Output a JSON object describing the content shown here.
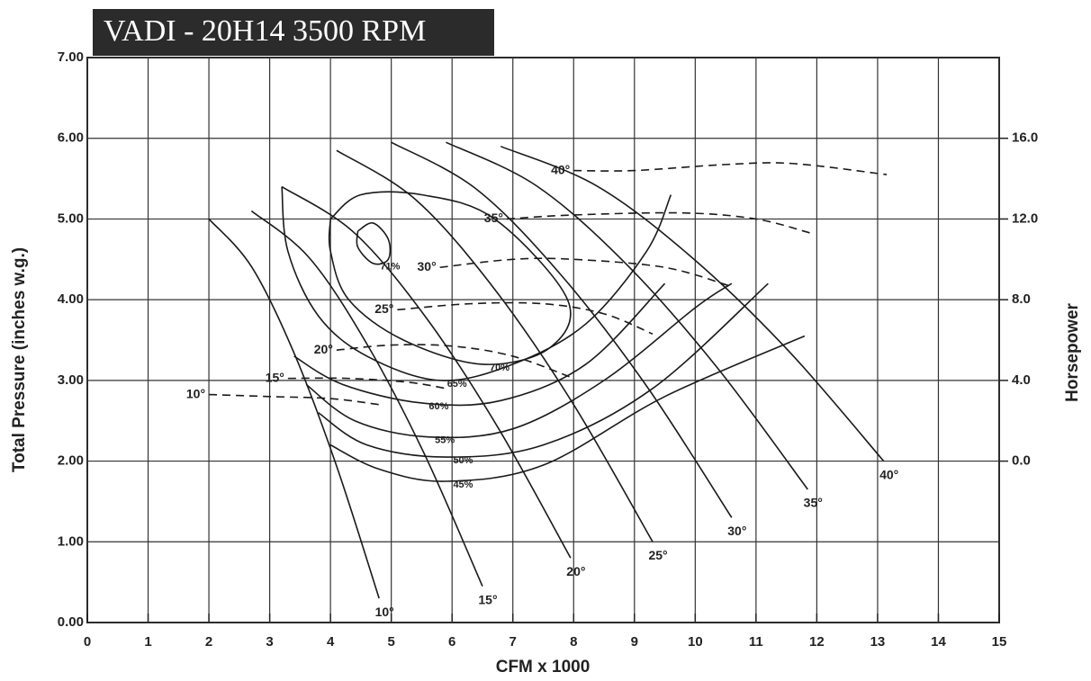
{
  "chart_data": {
    "type": "line",
    "title": "VADI - 20H14   3500 RPM",
    "xlabel": "CFM x 1000",
    "ylabel": "Total Pressure (inches w.g.)",
    "y2label": "Horsepower",
    "xlim": [
      0,
      15
    ],
    "xticks": [
      0,
      1,
      2,
      3,
      4,
      5,
      6,
      7,
      8,
      9,
      10,
      11,
      12,
      13,
      14,
      15
    ],
    "ylim": [
      0,
      7
    ],
    "yticks": [
      {
        "value": 0,
        "label": "0.00"
      },
      {
        "value": 1,
        "label": "1.00"
      },
      {
        "value": 2,
        "label": "2.00"
      },
      {
        "value": 3,
        "label": "3.00"
      },
      {
        "value": 4,
        "label": "4.00"
      },
      {
        "value": 5,
        "label": "5.00"
      },
      {
        "value": 6,
        "label": "6.00"
      },
      {
        "value": 7,
        "label": "7.00"
      }
    ],
    "y2lim": [
      -8,
      20
    ],
    "y2ticks": [
      {
        "value": 0,
        "label": "0.0"
      },
      {
        "value": 4,
        "label": "4.0"
      },
      {
        "value": 8,
        "label": "8.0"
      },
      {
        "value": 12,
        "label": "12.0"
      },
      {
        "value": 16,
        "label": "16.0"
      }
    ],
    "grid": true,
    "color": "#1a1a1a",
    "pressure_series": [
      {
        "name": "10°",
        "line_style": "solid",
        "x": [
          2.0,
          2.7,
          3.4,
          4.1,
          4.8
        ],
        "values": [
          5.0,
          4.41,
          3.34,
          1.94,
          0.3
        ]
      },
      {
        "name": "15°",
        "line_style": "solid",
        "x": [
          2.7,
          3.65,
          4.6,
          5.55,
          6.5
        ],
        "values": [
          5.1,
          4.52,
          3.45,
          2.08,
          0.45
        ]
      },
      {
        "name": "20°",
        "line_style": "solid",
        "x": [
          3.2,
          4.39,
          5.58,
          6.76,
          7.95
        ],
        "values": [
          5.4,
          4.83,
          3.77,
          2.41,
          0.8
        ]
      },
      {
        "name": "25°",
        "line_style": "solid",
        "x": [
          4.1,
          5.4,
          6.7,
          8.0,
          9.3
        ],
        "values": [
          5.85,
          5.24,
          4.13,
          2.7,
          1.0
        ]
      },
      {
        "name": "30°",
        "line_style": "solid",
        "x": [
          5.0,
          6.4,
          7.8,
          9.2,
          10.6
        ],
        "values": [
          5.95,
          5.37,
          4.3,
          2.93,
          1.3
        ]
      },
      {
        "name": "35°",
        "line_style": "solid",
        "x": [
          5.9,
          7.39,
          8.88,
          10.36,
          11.85
        ],
        "values": [
          5.95,
          5.41,
          4.43,
          3.16,
          1.65
        ]
      },
      {
        "name": "40°",
        "line_style": "solid",
        "x": [
          6.8,
          8.38,
          9.95,
          11.53,
          13.1
        ],
        "values": [
          5.9,
          5.41,
          4.52,
          3.37,
          2.0
        ]
      }
    ],
    "horsepower_series": [
      {
        "name": "10°",
        "line_style": "dashed",
        "axis": "y2",
        "x": [
          2.0,
          3.0,
          4.0,
          4.8
        ],
        "values": [
          3.3,
          3.2,
          3.1,
          2.8
        ]
      },
      {
        "name": "15°",
        "line_style": "dashed",
        "axis": "y2",
        "x": [
          3.3,
          4.3,
          5.3,
          5.9
        ],
        "values": [
          4.1,
          4.1,
          3.9,
          3.6
        ]
      },
      {
        "name": "20°",
        "line_style": "dashed",
        "axis": "y2",
        "x": [
          4.1,
          5.0,
          6.0,
          7.0,
          8.0
        ],
        "values": [
          5.5,
          5.75,
          5.7,
          5.2,
          4.1
        ]
      },
      {
        "name": "25°",
        "line_style": "dashed",
        "axis": "y2",
        "x": [
          5.1,
          6.3,
          7.5,
          8.5,
          9.3
        ],
        "values": [
          7.5,
          7.8,
          7.8,
          7.3,
          6.3
        ]
      },
      {
        "name": "30°",
        "line_style": "dashed",
        "axis": "y2",
        "x": [
          5.8,
          7.0,
          8.0,
          9.5,
          10.55
        ],
        "values": [
          9.6,
          10.0,
          10.0,
          9.6,
          8.7
        ]
      },
      {
        "name": "35°",
        "line_style": "dashed",
        "axis": "y2",
        "x": [
          6.9,
          8.0,
          9.8,
          11.0,
          11.9
        ],
        "values": [
          12.0,
          12.2,
          12.3,
          12.0,
          11.3
        ]
      },
      {
        "name": "40°",
        "line_style": "dashed",
        "axis": "y2",
        "x": [
          8.0,
          9.0,
          10.5,
          11.6,
          13.15
        ],
        "values": [
          14.4,
          14.4,
          14.7,
          14.75,
          14.2
        ]
      }
    ],
    "efficiency_series": [
      {
        "name": "71%",
        "line_style": "solid",
        "x": [
          4.45,
          4.7,
          4.95,
          4.95,
          4.7,
          4.45,
          4.45
        ],
        "values": [
          4.85,
          4.95,
          4.75,
          4.5,
          4.45,
          4.65,
          4.85
        ]
      },
      {
        "name": "70%",
        "line_style": "solid",
        "x": [
          4.0,
          4.5,
          5.5,
          6.7,
          7.9,
          7.6,
          6.5,
          5.2,
          4.3,
          4.0,
          4.0
        ],
        "values": [
          5.0,
          5.3,
          5.3,
          5.0,
          4.0,
          3.4,
          3.2,
          3.5,
          4.0,
          4.6,
          5.0
        ]
      },
      {
        "name": "65%",
        "line_style": "solid",
        "x": [
          3.2,
          3.3,
          3.8,
          4.6,
          5.8,
          7.0,
          8.2,
          9.2,
          9.6
        ],
        "values": [
          5.4,
          4.6,
          3.8,
          3.3,
          3.0,
          3.2,
          3.7,
          4.6,
          5.3
        ]
      },
      {
        "name": "60%",
        "line_style": "solid",
        "x": [
          3.4,
          4.2,
          5.5,
          6.8,
          8.2,
          9.5
        ],
        "values": [
          3.3,
          2.95,
          2.72,
          2.75,
          3.2,
          4.2
        ]
      },
      {
        "name": "55%",
        "line_style": "solid",
        "x": [
          3.6,
          4.4,
          5.6,
          7.0,
          8.5,
          10.0,
          10.6
        ],
        "values": [
          2.95,
          2.5,
          2.3,
          2.4,
          3.0,
          3.9,
          4.2
        ]
      },
      {
        "name": "50%",
        "line_style": "solid",
        "x": [
          3.8,
          4.6,
          5.9,
          7.5,
          9.3,
          11.2
        ],
        "values": [
          2.6,
          2.2,
          2.05,
          2.2,
          2.9,
          4.2
        ]
      },
      {
        "name": "45%",
        "line_style": "solid",
        "x": [
          4.0,
          4.8,
          5.9,
          7.5,
          9.5,
          11.8
        ],
        "values": [
          2.2,
          1.9,
          1.75,
          1.95,
          2.8,
          3.55
        ]
      }
    ]
  }
}
